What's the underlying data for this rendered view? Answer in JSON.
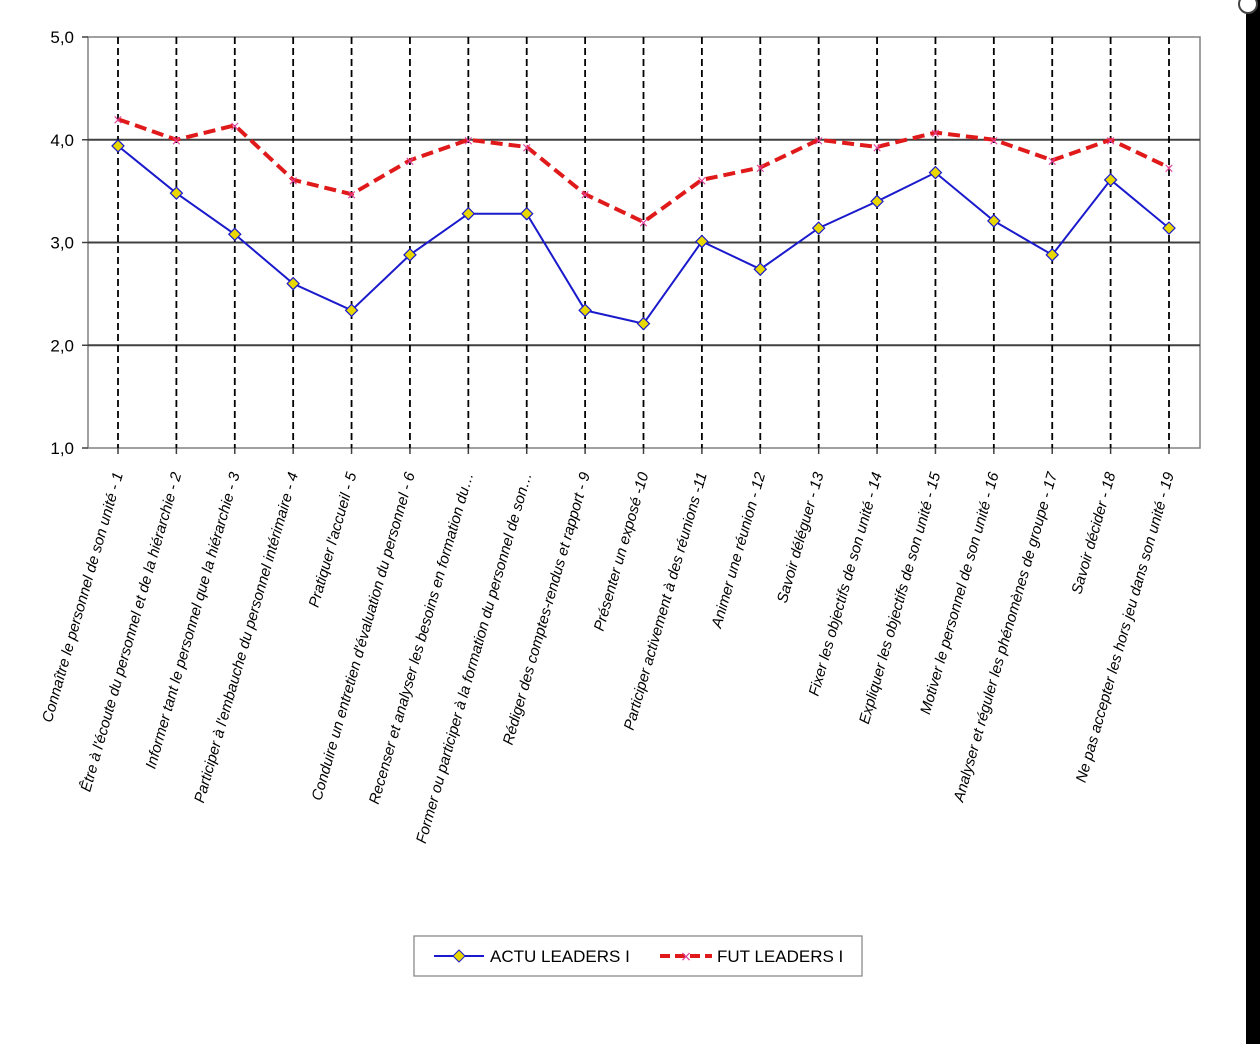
{
  "chart_data": {
    "type": "line",
    "title": "",
    "xlabel": "",
    "ylabel": "",
    "ylim": [
      1.0,
      5.0
    ],
    "yticks": [
      "1,0",
      "2,0",
      "3,0",
      "4,0",
      "5,0"
    ],
    "grid": true,
    "legend_position": "bottom",
    "categories": [
      "Connaître le personnel de son unité - 1",
      "Être à l'écoute du personnel et de la hiérarchie - 2",
      "Informer tant le personnel que la hiérarchie - 3",
      "Participer à l'embauche du personnel intérimaire - 4",
      "Pratiquer l'accueil - 5",
      "Conduire un entretien d'évaluation du personnel - 6",
      "Recenser et analyser les besoins en formation du…",
      "Former ou participer à la formation du personnel de son…",
      "Rédiger des comptes-rendus et rapport - 9",
      "Présenter un exposé -10",
      "Participer activement à des réunions -11",
      "Animer une réunion - 12",
      "Savoir déléguer - 13",
      "Fixer les objectifs de son unité - 14",
      "Expliquer les objectifs de son unité - 15",
      "Motiver le personnel de son unité - 16",
      "Analyser et réguler les phénomènes de groupe - 17",
      "Savoir décider - 18",
      "Ne pas accepter les hors jeu dans son unité - 19"
    ],
    "series": [
      {
        "name": "ACTU LEADERS I",
        "color": "#1a1acc",
        "marker_color": "#e8d800",
        "values": [
          3.94,
          3.48,
          3.08,
          2.6,
          2.34,
          2.88,
          3.28,
          3.28,
          2.34,
          2.21,
          3.01,
          2.74,
          3.14,
          3.4,
          3.68,
          3.21,
          2.88,
          3.61,
          3.14
        ]
      },
      {
        "name": "FUT LEADERS I",
        "color": "#e01a1a",
        "values": [
          4.2,
          4.0,
          4.14,
          3.61,
          3.47,
          3.8,
          4.0,
          3.93,
          3.47,
          3.2,
          3.61,
          3.73,
          4.0,
          3.93,
          4.07,
          4.0,
          3.8,
          4.0,
          3.73
        ]
      }
    ]
  }
}
